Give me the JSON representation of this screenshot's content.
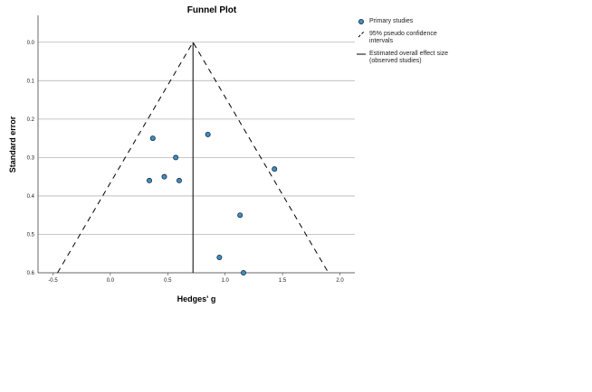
{
  "chart_data": {
    "type": "scatter",
    "title": "Funnel Plot",
    "xlabel": "Hedges' g",
    "ylabel": "Standard error",
    "xlim": [
      -0.63,
      2.13
    ],
    "ylim": [
      -0.07,
      0.6
    ],
    "y_inverted": true,
    "grid": true,
    "xticks": [
      -0.5,
      {
        "value": 0,
        "label": "0.0"
      },
      0.5,
      {
        "value": 1,
        "label": "1.0"
      },
      1.5,
      {
        "value": 2,
        "label": "2.0"
      }
    ],
    "yticks": [
      {
        "value": 0,
        "label": "0.0"
      },
      0.1,
      0.2,
      0.3,
      0.4,
      0.5,
      0.6
    ],
    "series": [
      {
        "name": "Primary studies",
        "type": "scatter",
        "color": "#3d8fc6",
        "x": [
          0.37,
          0.57,
          0.47,
          0.34,
          0.6,
          0.85,
          1.43,
          1.13,
          0.95,
          1.16
        ],
        "values": [
          0.25,
          0.3,
          0.35,
          0.36,
          0.36,
          0.24,
          0.33,
          0.45,
          0.56,
          0.6
        ]
      },
      {
        "name": "95% pseudo confidence intervals",
        "type": "dashed-line",
        "color": "#000000",
        "x": [
          -0.46,
          0.72,
          1.9
        ],
        "values": [
          0.6,
          0,
          0.6
        ]
      },
      {
        "name": "Estimated overall effect size (observed studies)",
        "type": "line",
        "color": "#000000",
        "x": [
          0.72,
          0.72
        ],
        "values": [
          0,
          0.6
        ]
      }
    ]
  }
}
